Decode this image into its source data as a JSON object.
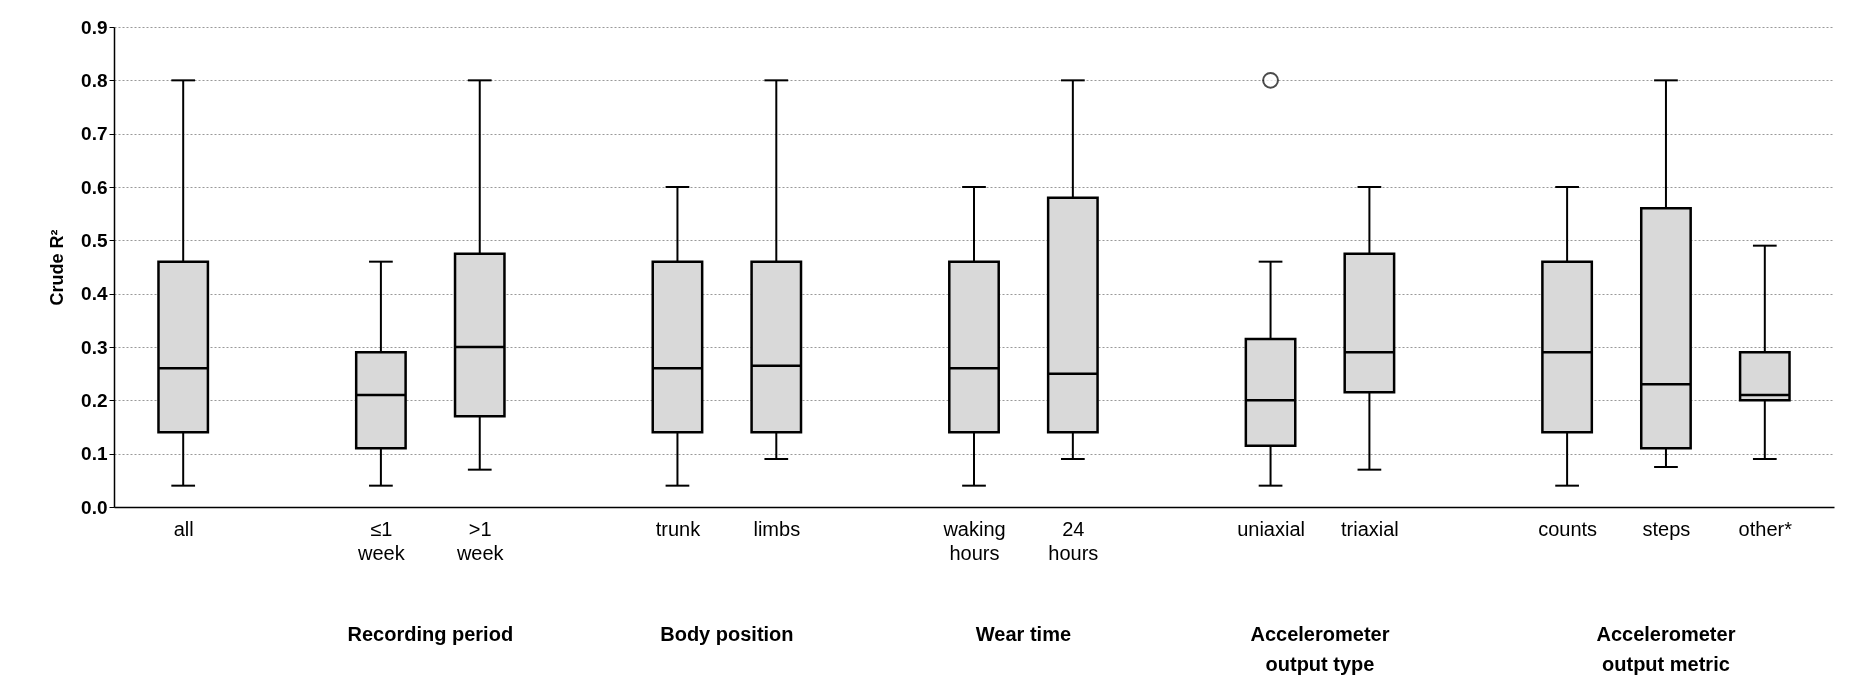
{
  "chart_data": {
    "type": "box",
    "ylabel": "Crude R²",
    "color": "#d9d9d9",
    "categories": [
      "all",
      null,
      "≤1 week",
      ">1 week",
      null,
      "trunk",
      "limbs",
      null,
      "waking hours",
      "24 hours",
      null,
      "uniaxial",
      "triaxial",
      null,
      "counts",
      "steps",
      "other*"
    ],
    "boxes": [
      {
        "low": 0.04,
        "q1": 0.14,
        "median": 0.26,
        "q3": 0.46,
        "high": 0.8
      },
      null,
      {
        "low": 0.04,
        "q1": 0.11,
        "median": 0.21,
        "q3": 0.29,
        "high": 0.46
      },
      {
        "low": 0.07,
        "q1": 0.17,
        "median": 0.3,
        "q3": 0.475,
        "high": 0.8
      },
      null,
      {
        "low": 0.04,
        "q1": 0.14,
        "median": 0.26,
        "q3": 0.46,
        "high": 0.6
      },
      {
        "low": 0.09,
        "q1": 0.14,
        "median": 0.265,
        "q3": 0.46,
        "high": 0.8
      },
      null,
      {
        "low": 0.04,
        "q1": 0.14,
        "median": 0.26,
        "q3": 0.46,
        "high": 0.6
      },
      {
        "low": 0.09,
        "q1": 0.14,
        "median": 0.25,
        "q3": 0.58,
        "high": 0.8
      },
      null,
      {
        "low": 0.04,
        "q1": 0.115,
        "median": 0.2,
        "q3": 0.315,
        "high": 0.46,
        "outliers": [
          0.8
        ]
      },
      {
        "low": 0.07,
        "q1": 0.215,
        "median": 0.29,
        "q3": 0.475,
        "high": 0.6
      },
      null,
      {
        "low": 0.04,
        "q1": 0.14,
        "median": 0.29,
        "q3": 0.46,
        "high": 0.6
      },
      {
        "low": 0.075,
        "q1": 0.11,
        "median": 0.23,
        "q3": 0.56,
        "high": 0.8
      },
      {
        "low": 0.09,
        "q1": 0.2,
        "median": 0.21,
        "q3": 0.29,
        "high": 0.49
      }
    ],
    "ylim": [
      0,
      0.9
    ],
    "yticks": [
      {
        "value": 0,
        "label": "0.0"
      },
      {
        "value": 0.1,
        "label": "0.1"
      },
      {
        "value": 0.2,
        "label": "0.2"
      },
      {
        "value": 0.3,
        "label": "0.3"
      },
      {
        "value": 0.4,
        "label": "0.4"
      },
      {
        "value": 0.5,
        "label": "0.5"
      },
      {
        "value": 0.6,
        "label": "0.6"
      },
      {
        "value": 0.7,
        "label": "0.7"
      },
      {
        "value": 0.8,
        "label": "0.8"
      },
      {
        "value": 0.9,
        "label": "0.9"
      }
    ],
    "grid": "y",
    "annotations": [
      "Recording period",
      "Body position",
      "Wear time",
      "Accelerometer output type",
      "Accelerometer output metric"
    ]
  }
}
